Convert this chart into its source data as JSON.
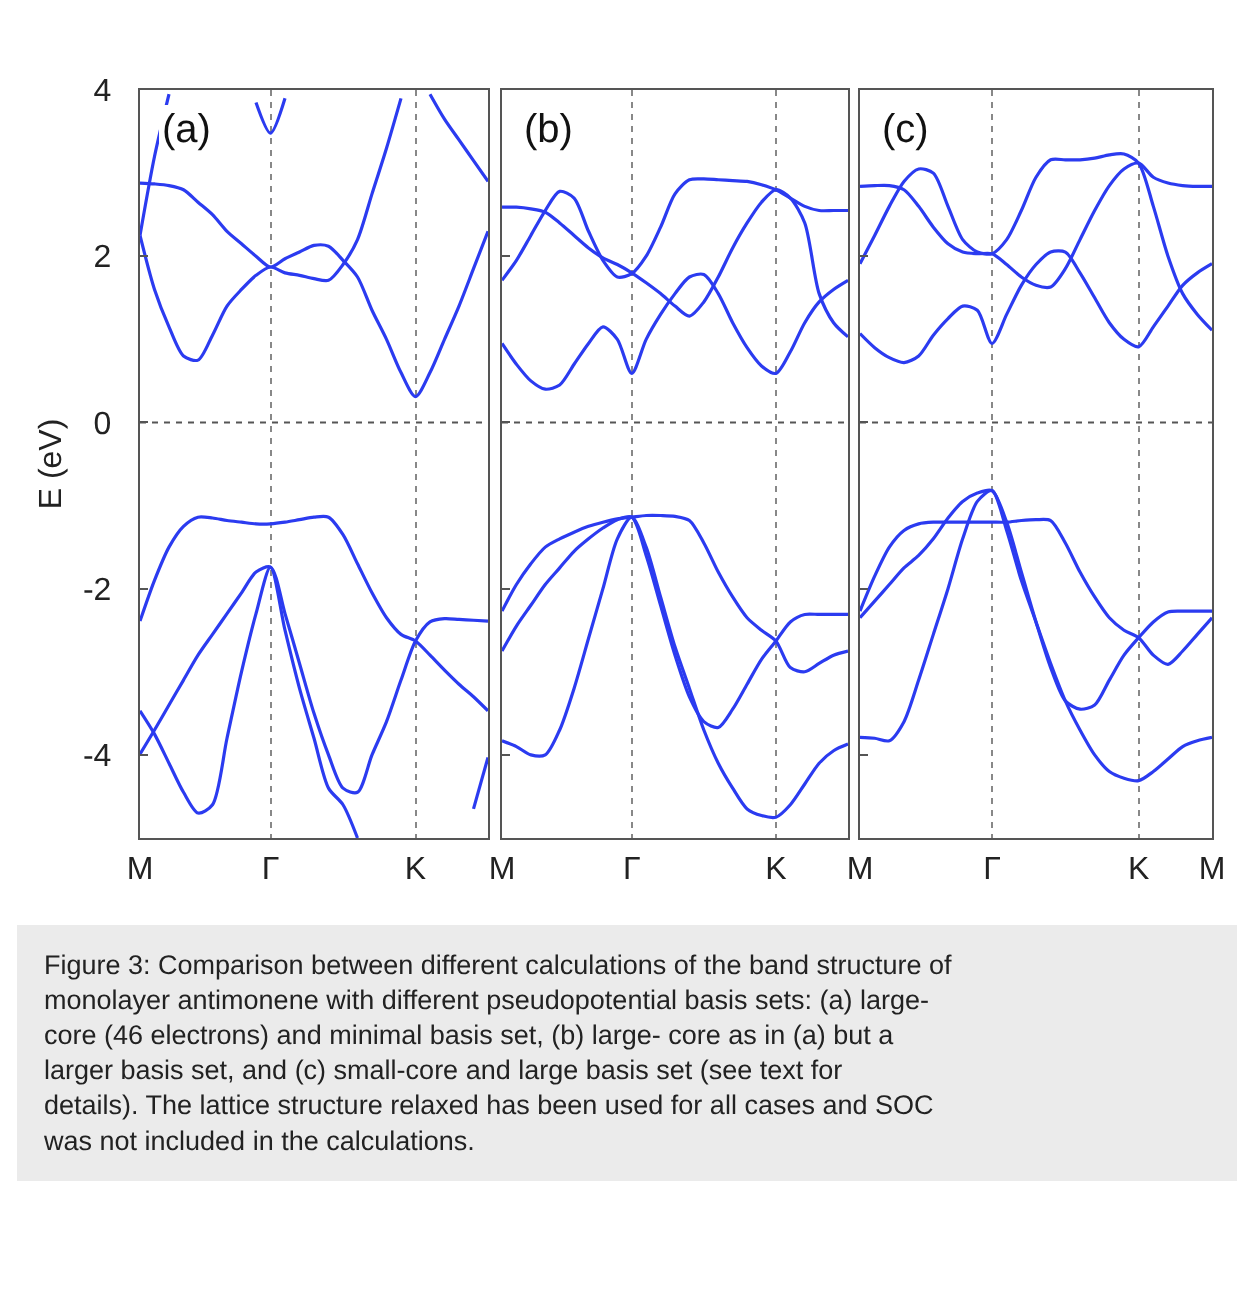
{
  "chart_data": [
    {
      "type": "line",
      "ylabel": "E (eV)",
      "ylim": [
        -5,
        4
      ],
      "yticks": [
        -4,
        -2,
        0,
        2,
        4
      ],
      "categories": [
        "M",
        null,
        null,
        null,
        null,
        null,
        null,
        null,
        null,
        "Γ",
        null,
        null,
        null,
        null,
        null,
        null,
        null,
        null,
        null,
        "K",
        null,
        null,
        null,
        null,
        null
      ],
      "grid": "x",
      "ref_lines": [
        {
          "axis": "y",
          "value": 0,
          "label": null,
          "color": "#555555",
          "line_style": "dotted"
        }
      ],
      "annotations": [
        "(a)",
        "Figure 3: Comparison between different calculations of the band structure of monolayer antimonene with different pseudopotential basis sets: (a) large-core (46 electrons) and minimal basis set, (b) large- core as in (a) but a larger basis set, and (c) small-core and large basis set (see text for details). The lattice structure relaxed has been used for all cases and SOC was not included in the calculations."
      ],
      "series": [
        {
          "color": "#2b3bf0",
          "values": [
            null,
            null,
            null,
            null,
            null,
            null,
            null,
            null,
            3.85,
            3.48,
            3.9,
            null,
            null,
            null,
            null,
            null,
            null,
            null,
            null,
            null,
            null,
            null,
            null,
            null,
            null
          ]
        },
        {
          "color": "#2b3bf0",
          "values": [
            2.25,
            3.2,
            3.95,
            null,
            null,
            null,
            null,
            null,
            null,
            null,
            null,
            null,
            null,
            null,
            null,
            null,
            null,
            null,
            null,
            null,
            null,
            null,
            null,
            null,
            null
          ]
        },
        {
          "color": "#2b3bf0",
          "values": [
            2.88,
            2.87,
            2.85,
            2.8,
            2.65,
            2.5,
            2.3,
            2.15,
            2.0,
            1.87,
            1.97,
            2.05,
            2.13,
            2.12,
            1.95,
            1.75,
            1.35,
            1.0,
            0.6,
            0.31,
            0.6,
            1.0,
            1.4,
            1.85,
            2.3
          ]
        },
        {
          "color": "#2b3bf0",
          "values": [
            2.25,
            1.6,
            1.15,
            0.8,
            0.75,
            1.05,
            1.4,
            1.6,
            1.77,
            1.87,
            1.8,
            1.77,
            1.73,
            1.71,
            1.9,
            2.2,
            2.75,
            3.3,
            3.9,
            null,
            null,
            null,
            null,
            null,
            null
          ]
        },
        {
          "color": "#2b3bf0",
          "values": [
            null,
            null,
            null,
            null,
            null,
            null,
            null,
            null,
            null,
            null,
            null,
            null,
            null,
            null,
            null,
            null,
            null,
            null,
            null,
            null,
            3.95,
            3.65,
            3.4,
            3.15,
            2.9
          ]
        },
        {
          "color": "#2b3bf0",
          "values": [
            -2.39,
            -1.9,
            -1.5,
            -1.25,
            -1.14,
            -1.15,
            -1.18,
            -1.2,
            -1.22,
            -1.22,
            -1.2,
            -1.17,
            -1.14,
            -1.14,
            -1.35,
            -1.7,
            -2.05,
            -2.35,
            -2.55,
            -2.63,
            -2.8,
            -2.98,
            -3.15,
            -3.3,
            -3.47
          ]
        },
        {
          "color": "#2b3bf0",
          "values": [
            -3.99,
            -3.7,
            -3.4,
            -3.1,
            -2.8,
            -2.55,
            -2.3,
            -2.05,
            -1.8,
            -1.74,
            -2.3,
            -2.9,
            -3.5,
            -4.0,
            -4.4,
            -4.45,
            -4.0,
            -3.6,
            -3.1,
            -2.63,
            -2.4,
            -2.36,
            -2.37,
            -2.38,
            -2.39
          ]
        },
        {
          "color": "#2b3bf0",
          "values": [
            -3.47,
            -3.75,
            -4.1,
            -4.45,
            -4.7,
            -4.6,
            -3.8,
            -3.0,
            -2.3,
            -1.74,
            -2.5,
            -3.2,
            -3.8,
            -4.4,
            -4.6,
            -5.0,
            null,
            null,
            null,
            null,
            null,
            null,
            null,
            null,
            null
          ]
        },
        {
          "color": "#2b3bf0",
          "values": [
            null,
            null,
            null,
            null,
            null,
            null,
            null,
            null,
            null,
            null,
            null,
            null,
            null,
            null,
            null,
            null,
            null,
            null,
            null,
            null,
            null,
            null,
            null,
            -4.65,
            -4.03
          ]
        }
      ]
    },
    {
      "type": "line",
      "ylim": [
        -5,
        4
      ],
      "yticks": [
        -4,
        -2,
        0,
        2,
        4
      ],
      "tick_labels": "x",
      "categories": [
        "M",
        null,
        null,
        null,
        null,
        null,
        null,
        null,
        null,
        "Γ",
        null,
        null,
        null,
        null,
        null,
        null,
        null,
        null,
        null,
        "K",
        null,
        null,
        null,
        null,
        null
      ],
      "grid": "x",
      "ref_lines": [
        {
          "axis": "y",
          "value": 0,
          "label": null,
          "color": "#555555",
          "line_style": "dotted"
        }
      ],
      "annotations": [
        "(b)"
      ],
      "series": [
        {
          "color": "#2b3bf0",
          "values": [
            2.59,
            2.59,
            2.57,
            2.53,
            2.4,
            2.25,
            2.1,
            1.98,
            1.9,
            1.8,
            1.68,
            1.55,
            1.4,
            1.28,
            1.45,
            1.75,
            2.1,
            2.4,
            2.65,
            2.8,
            2.7,
            2.4,
            1.55,
            1.2,
            1.03
          ]
        },
        {
          "color": "#2b3bf0",
          "values": [
            1.71,
            1.95,
            2.25,
            2.55,
            2.78,
            2.7,
            2.3,
            1.95,
            1.75,
            1.79,
            2.0,
            2.35,
            2.75,
            2.92,
            2.93,
            2.92,
            2.91,
            2.9,
            2.86,
            2.8,
            2.7,
            2.6,
            2.55,
            2.55,
            2.55
          ]
        },
        {
          "color": "#2b3bf0",
          "values": [
            0.95,
            0.7,
            0.5,
            0.4,
            0.45,
            0.7,
            0.95,
            1.15,
            1.0,
            0.59,
            1.0,
            1.3,
            1.55,
            1.75,
            1.78,
            1.55,
            1.2,
            0.9,
            0.68,
            0.59,
            0.85,
            1.2,
            1.45,
            1.6,
            1.71
          ]
        },
        {
          "color": "#2b3bf0",
          "values": [
            -2.27,
            -1.95,
            -1.7,
            -1.5,
            -1.4,
            -1.32,
            -1.25,
            -1.2,
            -1.16,
            -1.14,
            -1.12,
            -1.12,
            -1.13,
            -1.18,
            -1.45,
            -1.8,
            -2.1,
            -2.35,
            -2.5,
            -2.63,
            -2.95,
            -3.0,
            -2.9,
            -2.8,
            -2.75
          ]
        },
        {
          "color": "#2b3bf0",
          "values": [
            -2.75,
            -2.45,
            -2.2,
            -1.95,
            -1.75,
            -1.55,
            -1.4,
            -1.27,
            -1.17,
            -1.14,
            -1.6,
            -2.2,
            -2.8,
            -3.3,
            -3.6,
            -3.67,
            -3.45,
            -3.15,
            -2.85,
            -2.63,
            -2.4,
            -2.31,
            -2.31,
            -2.31,
            -2.31
          ]
        },
        {
          "color": "#2b3bf0",
          "values": [
            -3.83,
            -3.9,
            -4.0,
            -4.0,
            -3.7,
            -3.2,
            -2.6,
            -2.0,
            -1.4,
            -1.14,
            -1.5,
            -2.1,
            -2.7,
            -3.2,
            -3.7,
            -4.1,
            -4.4,
            -4.65,
            -4.73,
            -4.75,
            -4.6,
            -4.35,
            -4.1,
            -3.95,
            -3.87
          ]
        }
      ]
    },
    {
      "type": "line",
      "ylim": [
        -5,
        4
      ],
      "yticks": [
        -4,
        -2,
        0,
        2,
        4
      ],
      "tick_labels": "x",
      "categories": [
        "M",
        null,
        null,
        null,
        null,
        null,
        null,
        null,
        null,
        "Γ",
        null,
        null,
        null,
        null,
        null,
        null,
        null,
        null,
        null,
        "K",
        null,
        null,
        null,
        null,
        "M"
      ],
      "grid": "x",
      "ref_lines": [
        {
          "axis": "y",
          "value": 0,
          "label": null,
          "color": "#555555",
          "line_style": "dotted"
        }
      ],
      "annotations": [
        "(c)"
      ],
      "series": [
        {
          "color": "#2b3bf0",
          "values": [
            2.84,
            2.85,
            2.85,
            2.8,
            2.6,
            2.35,
            2.15,
            2.05,
            2.03,
            2.03,
            1.9,
            1.75,
            1.65,
            1.63,
            1.85,
            2.2,
            2.55,
            2.85,
            3.05,
            3.12,
            2.95,
            2.88,
            2.85,
            2.84,
            2.84
          ]
        },
        {
          "color": "#2b3bf0",
          "values": [
            1.91,
            2.25,
            2.6,
            2.9,
            3.05,
            3.0,
            2.6,
            2.2,
            2.05,
            2.03,
            2.2,
            2.55,
            2.95,
            3.16,
            3.16,
            3.16,
            3.18,
            3.22,
            3.23,
            3.12,
            2.6,
            2.0,
            1.55,
            1.3,
            1.11
          ]
        },
        {
          "color": "#2b3bf0",
          "values": [
            1.07,
            0.9,
            0.78,
            0.72,
            0.8,
            1.05,
            1.25,
            1.4,
            1.35,
            0.95,
            1.3,
            1.65,
            1.9,
            2.05,
            2.05,
            1.8,
            1.5,
            1.2,
            1.0,
            0.91,
            1.15,
            1.4,
            1.65,
            1.8,
            1.91
          ]
        },
        {
          "color": "#2b3bf0",
          "values": [
            -2.27,
            -1.85,
            -1.5,
            -1.3,
            -1.22,
            -1.2,
            -1.2,
            -1.2,
            -1.2,
            -1.2,
            -1.2,
            -1.18,
            -1.17,
            -1.18,
            -1.45,
            -1.8,
            -2.1,
            -2.35,
            -2.5,
            -2.59,
            -2.8,
            -2.91,
            -2.75,
            -2.55,
            -2.35
          ]
        },
        {
          "color": "#2b3bf0",
          "values": [
            -2.35,
            -2.15,
            -1.95,
            -1.75,
            -1.6,
            -1.4,
            -1.15,
            -0.95,
            -0.85,
            -0.82,
            -1.2,
            -1.8,
            -2.4,
            -2.95,
            -3.35,
            -3.45,
            -3.4,
            -3.1,
            -2.8,
            -2.59,
            -2.4,
            -2.28,
            -2.27,
            -2.27,
            -2.27
          ]
        },
        {
          "color": "#2b3bf0",
          "values": [
            -3.79,
            -3.8,
            -3.83,
            -3.6,
            -3.1,
            -2.55,
            -2.0,
            -1.4,
            -0.95,
            -0.82,
            -1.3,
            -1.9,
            -2.4,
            -2.9,
            -3.35,
            -3.7,
            -4.0,
            -4.2,
            -4.28,
            -4.31,
            -4.2,
            -4.05,
            -3.9,
            -3.83,
            -3.79
          ]
        }
      ]
    }
  ]
}
